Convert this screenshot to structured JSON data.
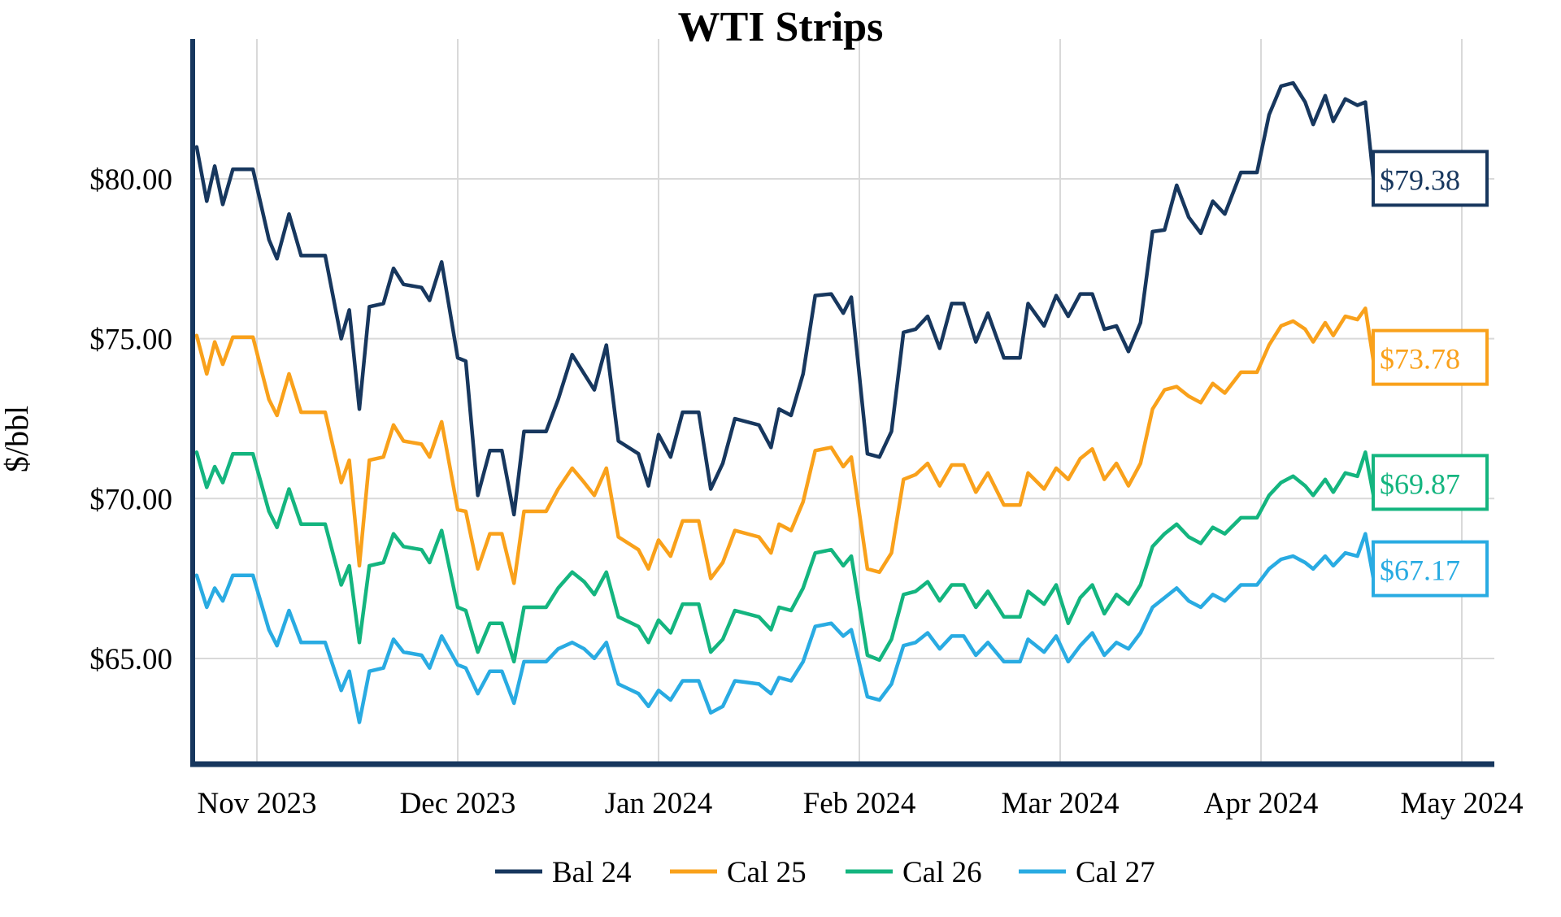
{
  "title": "WTI Strips",
  "y_axis": {
    "label": "$/bbl",
    "ticks": [
      {
        "value": 80,
        "label": "$80.00"
      },
      {
        "value": 75,
        "label": "$75.00"
      },
      {
        "value": 70,
        "label": "$70.00"
      },
      {
        "value": 65,
        "label": "$65.00"
      }
    ]
  },
  "x_axis": {
    "ticks": [
      {
        "t": 0,
        "label": "Nov 2023"
      },
      {
        "t": 1,
        "label": "Dec 2023"
      },
      {
        "t": 2,
        "label": "Jan 2024"
      },
      {
        "t": 3,
        "label": "Feb 2024"
      },
      {
        "t": 4,
        "label": "Mar 2024"
      },
      {
        "t": 5,
        "label": "Apr 2024"
      },
      {
        "t": 6,
        "label": "May 2024"
      }
    ]
  },
  "legend": [
    {
      "name": "Bal 24",
      "color": "#17375E"
    },
    {
      "name": "Cal 25",
      "color": "#F9A11B"
    },
    {
      "name": "Cal 26",
      "color": "#14B57F"
    },
    {
      "name": "Cal 27",
      "color": "#29ABE2"
    }
  ],
  "colors": {
    "grid": "#D9D9D9",
    "axis": "#17375E",
    "background": "#FFFFFF"
  },
  "end_labels": [
    {
      "series": "Bal 24",
      "text": "$79.38",
      "color": "#17375E"
    },
    {
      "series": "Cal 25",
      "text": "$73.78",
      "color": "#F9A11B"
    },
    {
      "series": "Cal 26",
      "text": "$69.87",
      "color": "#14B57F"
    },
    {
      "series": "Cal 27",
      "text": "$67.17",
      "color": "#29ABE2"
    }
  ],
  "chart_data": {
    "type": "line",
    "title": "WTI Strips",
    "xlabel": "",
    "ylabel": "$/bbl",
    "x_unit": "months_after_2023-11-01",
    "xlim": [
      -0.32,
      6.16
    ],
    "ylim": [
      61.7,
      84.4
    ],
    "grid": true,
    "legend_position": "bottom",
    "t": [
      -0.3,
      -0.25,
      -0.21,
      -0.17,
      -0.12,
      -0.02,
      0.06,
      0.1,
      0.16,
      0.22,
      0.34,
      0.42,
      0.46,
      0.51,
      0.56,
      0.63,
      0.68,
      0.73,
      0.82,
      0.86,
      0.92,
      1.0,
      1.04,
      1.1,
      1.16,
      1.22,
      1.28,
      1.33,
      1.44,
      1.5,
      1.57,
      1.63,
      1.68,
      1.74,
      1.8,
      1.9,
      1.95,
      2.0,
      2.06,
      2.12,
      2.2,
      2.26,
      2.32,
      2.38,
      2.5,
      2.56,
      2.6,
      2.66,
      2.72,
      2.78,
      2.86,
      2.92,
      2.96,
      3.04,
      3.1,
      3.16,
      3.22,
      3.28,
      3.34,
      3.4,
      3.46,
      3.52,
      3.58,
      3.64,
      3.72,
      3.8,
      3.84,
      3.92,
      3.98,
      4.04,
      4.1,
      4.16,
      4.22,
      4.28,
      4.34,
      4.4,
      4.46,
      4.52,
      4.58,
      4.64,
      4.7,
      4.76,
      4.82,
      4.9,
      4.98,
      5.04,
      5.1,
      5.16,
      5.22,
      5.26,
      5.32,
      5.36,
      5.42,
      5.48,
      5.52,
      5.56,
      5.61
    ],
    "series": [
      {
        "name": "Bal 24",
        "color": "#17375E",
        "end_label": "$79.38",
        "last_value": 79.38,
        "values": [
          81.0,
          79.3,
          80.4,
          79.2,
          80.3,
          80.3,
          78.1,
          77.5,
          78.9,
          77.6,
          77.6,
          75.0,
          75.9,
          72.8,
          76.0,
          76.1,
          77.2,
          76.7,
          76.6,
          76.2,
          77.4,
          74.4,
          74.3,
          70.1,
          71.5,
          71.5,
          69.5,
          72.1,
          72.1,
          73.1,
          74.5,
          73.9,
          73.4,
          74.8,
          71.8,
          71.4,
          70.4,
          72.0,
          71.3,
          72.7,
          72.7,
          70.3,
          71.1,
          72.5,
          72.3,
          71.6,
          72.8,
          72.6,
          73.9,
          76.35,
          76.4,
          75.8,
          76.3,
          71.4,
          71.3,
          72.1,
          75.2,
          75.3,
          75.7,
          74.7,
          76.1,
          76.1,
          74.9,
          75.8,
          74.4,
          74.4,
          76.1,
          75.4,
          76.35,
          75.7,
          76.4,
          76.4,
          75.3,
          75.4,
          74.6,
          75.5,
          78.35,
          78.4,
          79.8,
          78.8,
          78.3,
          79.3,
          78.9,
          80.2,
          80.2,
          82.0,
          82.9,
          83.0,
          82.4,
          81.7,
          82.6,
          81.8,
          82.5,
          82.3,
          82.4,
          80.0,
          79.38
        ]
      },
      {
        "name": "Cal 25",
        "color": "#F9A11B",
        "end_label": "$73.78",
        "last_value": 73.78,
        "values": [
          75.1,
          73.9,
          74.9,
          74.2,
          75.05,
          75.05,
          73.1,
          72.6,
          73.9,
          72.7,
          72.7,
          70.5,
          71.2,
          67.9,
          71.2,
          71.3,
          72.3,
          71.8,
          71.7,
          71.3,
          72.4,
          69.65,
          69.6,
          67.8,
          68.9,
          68.9,
          67.35,
          69.6,
          69.6,
          70.3,
          70.95,
          70.5,
          70.1,
          70.95,
          68.8,
          68.4,
          67.8,
          68.7,
          68.2,
          69.3,
          69.3,
          67.5,
          68.0,
          69.0,
          68.8,
          68.3,
          69.2,
          69.0,
          69.9,
          71.5,
          71.6,
          71.0,
          71.3,
          67.8,
          67.7,
          68.3,
          70.6,
          70.75,
          71.1,
          70.4,
          71.05,
          71.05,
          70.2,
          70.8,
          69.8,
          69.8,
          70.8,
          70.3,
          70.95,
          70.6,
          71.25,
          71.55,
          70.6,
          71.1,
          70.4,
          71.1,
          72.8,
          73.4,
          73.5,
          73.2,
          73.0,
          73.6,
          73.3,
          73.95,
          73.95,
          74.8,
          75.4,
          75.55,
          75.3,
          74.9,
          75.5,
          75.1,
          75.7,
          75.6,
          75.95,
          74.3,
          73.78
        ]
      },
      {
        "name": "Cal 26",
        "color": "#14B57F",
        "end_label": "$69.87",
        "last_value": 69.87,
        "values": [
          71.45,
          70.35,
          71.0,
          70.5,
          71.4,
          71.4,
          69.6,
          69.1,
          70.3,
          69.2,
          69.2,
          67.3,
          67.9,
          65.5,
          67.9,
          68.0,
          68.9,
          68.5,
          68.4,
          68.0,
          69.0,
          66.6,
          66.5,
          65.2,
          66.1,
          66.1,
          64.9,
          66.6,
          66.6,
          67.2,
          67.7,
          67.4,
          67.0,
          67.7,
          66.3,
          66.0,
          65.5,
          66.2,
          65.8,
          66.7,
          66.7,
          65.2,
          65.6,
          66.5,
          66.3,
          65.9,
          66.6,
          66.5,
          67.2,
          68.3,
          68.4,
          67.9,
          68.2,
          65.1,
          64.95,
          65.6,
          67.0,
          67.1,
          67.4,
          66.8,
          67.3,
          67.3,
          66.6,
          67.1,
          66.3,
          66.3,
          67.1,
          66.7,
          67.3,
          66.1,
          66.9,
          67.3,
          66.4,
          67.0,
          66.7,
          67.3,
          68.5,
          68.9,
          69.2,
          68.8,
          68.6,
          69.1,
          68.9,
          69.4,
          69.4,
          70.1,
          70.5,
          70.7,
          70.4,
          70.1,
          70.6,
          70.2,
          70.8,
          70.7,
          71.45,
          70.1,
          69.87
        ]
      },
      {
        "name": "Cal 27",
        "color": "#29ABE2",
        "end_label": "$67.17",
        "last_value": 67.17,
        "values": [
          67.6,
          66.6,
          67.2,
          66.8,
          67.6,
          67.6,
          65.9,
          65.4,
          66.5,
          65.5,
          65.5,
          64.0,
          64.6,
          63.0,
          64.6,
          64.7,
          65.6,
          65.2,
          65.1,
          64.7,
          65.7,
          64.8,
          64.7,
          63.9,
          64.6,
          64.6,
          63.6,
          64.9,
          64.9,
          65.3,
          65.5,
          65.3,
          65.0,
          65.5,
          64.2,
          63.9,
          63.5,
          64.0,
          63.7,
          64.3,
          64.3,
          63.3,
          63.5,
          64.3,
          64.2,
          63.9,
          64.4,
          64.3,
          64.9,
          66.0,
          66.1,
          65.7,
          65.9,
          63.8,
          63.7,
          64.2,
          65.4,
          65.5,
          65.8,
          65.3,
          65.7,
          65.7,
          65.1,
          65.5,
          64.9,
          64.9,
          65.6,
          65.2,
          65.7,
          64.9,
          65.4,
          65.8,
          65.1,
          65.5,
          65.3,
          65.8,
          66.6,
          66.9,
          67.2,
          66.8,
          66.6,
          67.0,
          66.8,
          67.3,
          67.3,
          67.8,
          68.1,
          68.2,
          68.0,
          67.8,
          68.2,
          67.9,
          68.3,
          68.2,
          68.9,
          67.5,
          67.17
        ]
      }
    ]
  }
}
